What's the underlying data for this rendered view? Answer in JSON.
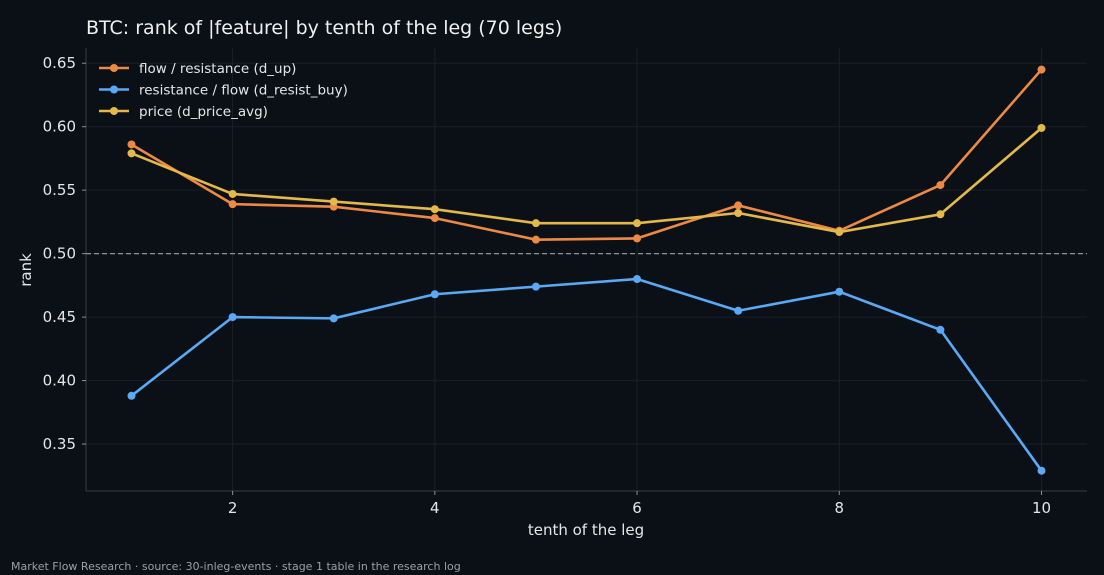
{
  "chart_data": {
    "type": "line",
    "title": "BTC: rank of |feature| by tenth of the leg (70 legs)",
    "xlabel": "tenth of the leg",
    "ylabel": "rank",
    "x": [
      1,
      2,
      3,
      4,
      5,
      6,
      7,
      8,
      9,
      10
    ],
    "xlim": [
      0.55,
      10.45
    ],
    "ylim": [
      0.313,
      0.662
    ],
    "xticks": [
      2,
      4,
      6,
      8,
      10
    ],
    "yticks": [
      0.35,
      0.4,
      0.45,
      0.5,
      0.55,
      0.6,
      0.65
    ],
    "xtick_labels": [
      "2",
      "4",
      "6",
      "8",
      "10"
    ],
    "ytick_labels": [
      "0.35",
      "0.40",
      "0.45",
      "0.50",
      "0.55",
      "0.60",
      "0.65"
    ],
    "reference_line": {
      "y": 0.5,
      "style": "dashed",
      "color": "#8a8f98"
    },
    "grid": true,
    "legend_position": "top-left",
    "series": [
      {
        "name": "flow / resistance (d_up)",
        "color": "#ec8a45",
        "values": [
          0.586,
          0.539,
          0.537,
          0.528,
          0.511,
          0.512,
          0.538,
          0.518,
          0.554,
          0.645
        ]
      },
      {
        "name": "resistance / flow (d_resist_buy)",
        "color": "#5aa9f5",
        "values": [
          0.388,
          0.45,
          0.449,
          0.468,
          0.474,
          0.48,
          0.455,
          0.47,
          0.44,
          0.329
        ]
      },
      {
        "name": "price (d_price_avg)",
        "color": "#e2b94a",
        "values": [
          0.579,
          0.547,
          0.541,
          0.535,
          0.524,
          0.524,
          0.532,
          0.517,
          0.531,
          0.599
        ]
      }
    ]
  },
  "footer": "Market Flow Research · source: 30-inleg-events · stage 1 table in the research log"
}
